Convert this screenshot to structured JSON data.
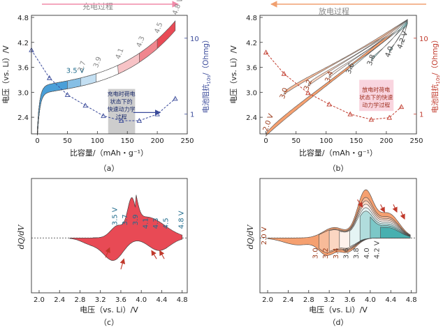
{
  "chart_data": [
    {
      "panel": "a",
      "type": "line",
      "title": "充电过程",
      "caption": "（a）",
      "xlabel": "比容量/（mAh・g⁻¹）",
      "ylabel": "电压（vs. Li）/V",
      "y2label_main": "电池阻抗",
      "y2label_sub": "10s",
      "y2label_unit": "/（Ohmg）",
      "xlim": [
        -10,
        250
      ],
      "ylim": [
        2.0,
        4.85
      ],
      "y2_scale": "log",
      "y2lim": [
        0.55,
        20
      ],
      "xticks": [
        "0",
        "50",
        "100",
        "150",
        "200",
        "250"
      ],
      "yticks": [
        "2.4",
        "3.0",
        "3.6",
        "4.2",
        "4.8"
      ],
      "y2ticks": [
        "1",
        "10"
      ],
      "cutoff_labels": [
        "3.5 V",
        "3.7",
        "3.9",
        "4.1",
        "4.3",
        "4.5",
        "4.8 V"
      ],
      "cutoff_voltages": [
        3.5,
        3.7,
        3.9,
        4.1,
        4.3,
        4.5,
        4.8
      ],
      "cutoff_capacities": [
        50,
        72,
        98,
        135,
        170,
        200,
        230
      ],
      "annotation": [
        "充电时荷电",
        "状态下的",
        "快速动力学",
        "过程"
      ],
      "impedance_series": {
        "capacity": [
          -10,
          20,
          50,
          80,
          110,
          140,
          170,
          200,
          230
        ],
        "impedance": [
          7.0,
          3.0,
          1.8,
          1.3,
          0.95,
          0.82,
          0.82,
          1.0,
          1.6
        ]
      },
      "colors": {
        "low": "#4a9fd8",
        "high": "#e84a55",
        "mid": "#ffffff",
        "impedance": "#3a4a9a",
        "highlight": "#c8c8c8"
      }
    },
    {
      "panel": "b",
      "type": "line",
      "title": "放电过程",
      "caption": "（b）",
      "xlabel": "比容量/（mAh・g⁻¹）",
      "ylabel": "电压（vs. Li）/V",
      "y2label_main": "电池阻抗",
      "y2label_sub": "10s",
      "y2label_unit": "/（Ohmg）",
      "xlim": [
        -10,
        250
      ],
      "ylim": [
        2.0,
        4.85
      ],
      "y2_scale": "log",
      "y2lim": [
        0.55,
        20
      ],
      "xticks": [
        "0",
        "50",
        "100",
        "150",
        "200",
        "250"
      ],
      "yticks": [
        "2.4",
        "3.0",
        "3.6",
        "4.2",
        "4.8"
      ],
      "y2ticks": [
        "1",
        "10"
      ],
      "cutoff_labels": [
        "2.0 V",
        "3.0",
        "3.2",
        "3.4",
        "3.6",
        "3.8",
        "4.0",
        "4.2 V"
      ],
      "cutoff_voltages": [
        2.0,
        3.0,
        3.2,
        3.4,
        3.6,
        3.8,
        4.0,
        4.2
      ],
      "cutoff_capacities": [
        0,
        30,
        70,
        105,
        140,
        175,
        205,
        225
      ],
      "annotation": [
        "放电时荷电",
        "状态下的快速",
        "动力学过程"
      ],
      "impedance_series": {
        "capacity": [
          0,
          30,
          70,
          105,
          140,
          175,
          205,
          225
        ],
        "impedance": [
          6.5,
          3.4,
          1.9,
          1.35,
          1.0,
          0.85,
          0.9,
          1.25
        ]
      },
      "colors": {
        "low": "#f5a070",
        "high": "#48b0b0",
        "mid": "#ffffff",
        "impedance": "#c0392b",
        "highlight": "#f8d0dc"
      }
    },
    {
      "panel": "c",
      "type": "line",
      "caption": "（c）",
      "xlabel": "电压（vs. Li）/V",
      "ylabel": "dQ/dV",
      "xlim": [
        1.85,
        4.9
      ],
      "xticks": [
        "2.0",
        "2.4",
        "2.8",
        "3.2",
        "3.6",
        "4.0",
        "4.4",
        "4.8"
      ],
      "cutoff_labels": [
        "3.5 V",
        "3.7",
        "3.9",
        "4.1",
        "4.3",
        "4.5",
        "4.8 V"
      ],
      "cutoff_voltages": [
        3.5,
        3.7,
        3.9,
        4.1,
        4.3,
        4.5,
        4.8
      ],
      "colors": {
        "low": "#4a9fd8",
        "high": "#e84a55",
        "mid": "#ffffff",
        "arrow": "#c0392b"
      }
    },
    {
      "panel": "d",
      "type": "line",
      "caption": "（d）",
      "xlabel": "电压（vs. Li）/V",
      "ylabel": "dQ/dV",
      "xlim": [
        1.85,
        4.9
      ],
      "xticks": [
        "2.0",
        "2.4",
        "2.8",
        "3.2",
        "3.6",
        "4.0",
        "4.4",
        "4.8"
      ],
      "cutoff_labels": [
        "2.0 V",
        "3.0",
        "3.2",
        "3.4",
        "3.6",
        "3.8",
        "4.0",
        "4.2 V"
      ],
      "cutoff_voltages": [
        2.0,
        3.0,
        3.2,
        3.4,
        3.6,
        3.8,
        4.0,
        4.2
      ],
      "colors": {
        "low": "#f5a070",
        "high": "#48b0b0",
        "mid": "#ffffff",
        "arrow": "#c0392b"
      }
    }
  ]
}
